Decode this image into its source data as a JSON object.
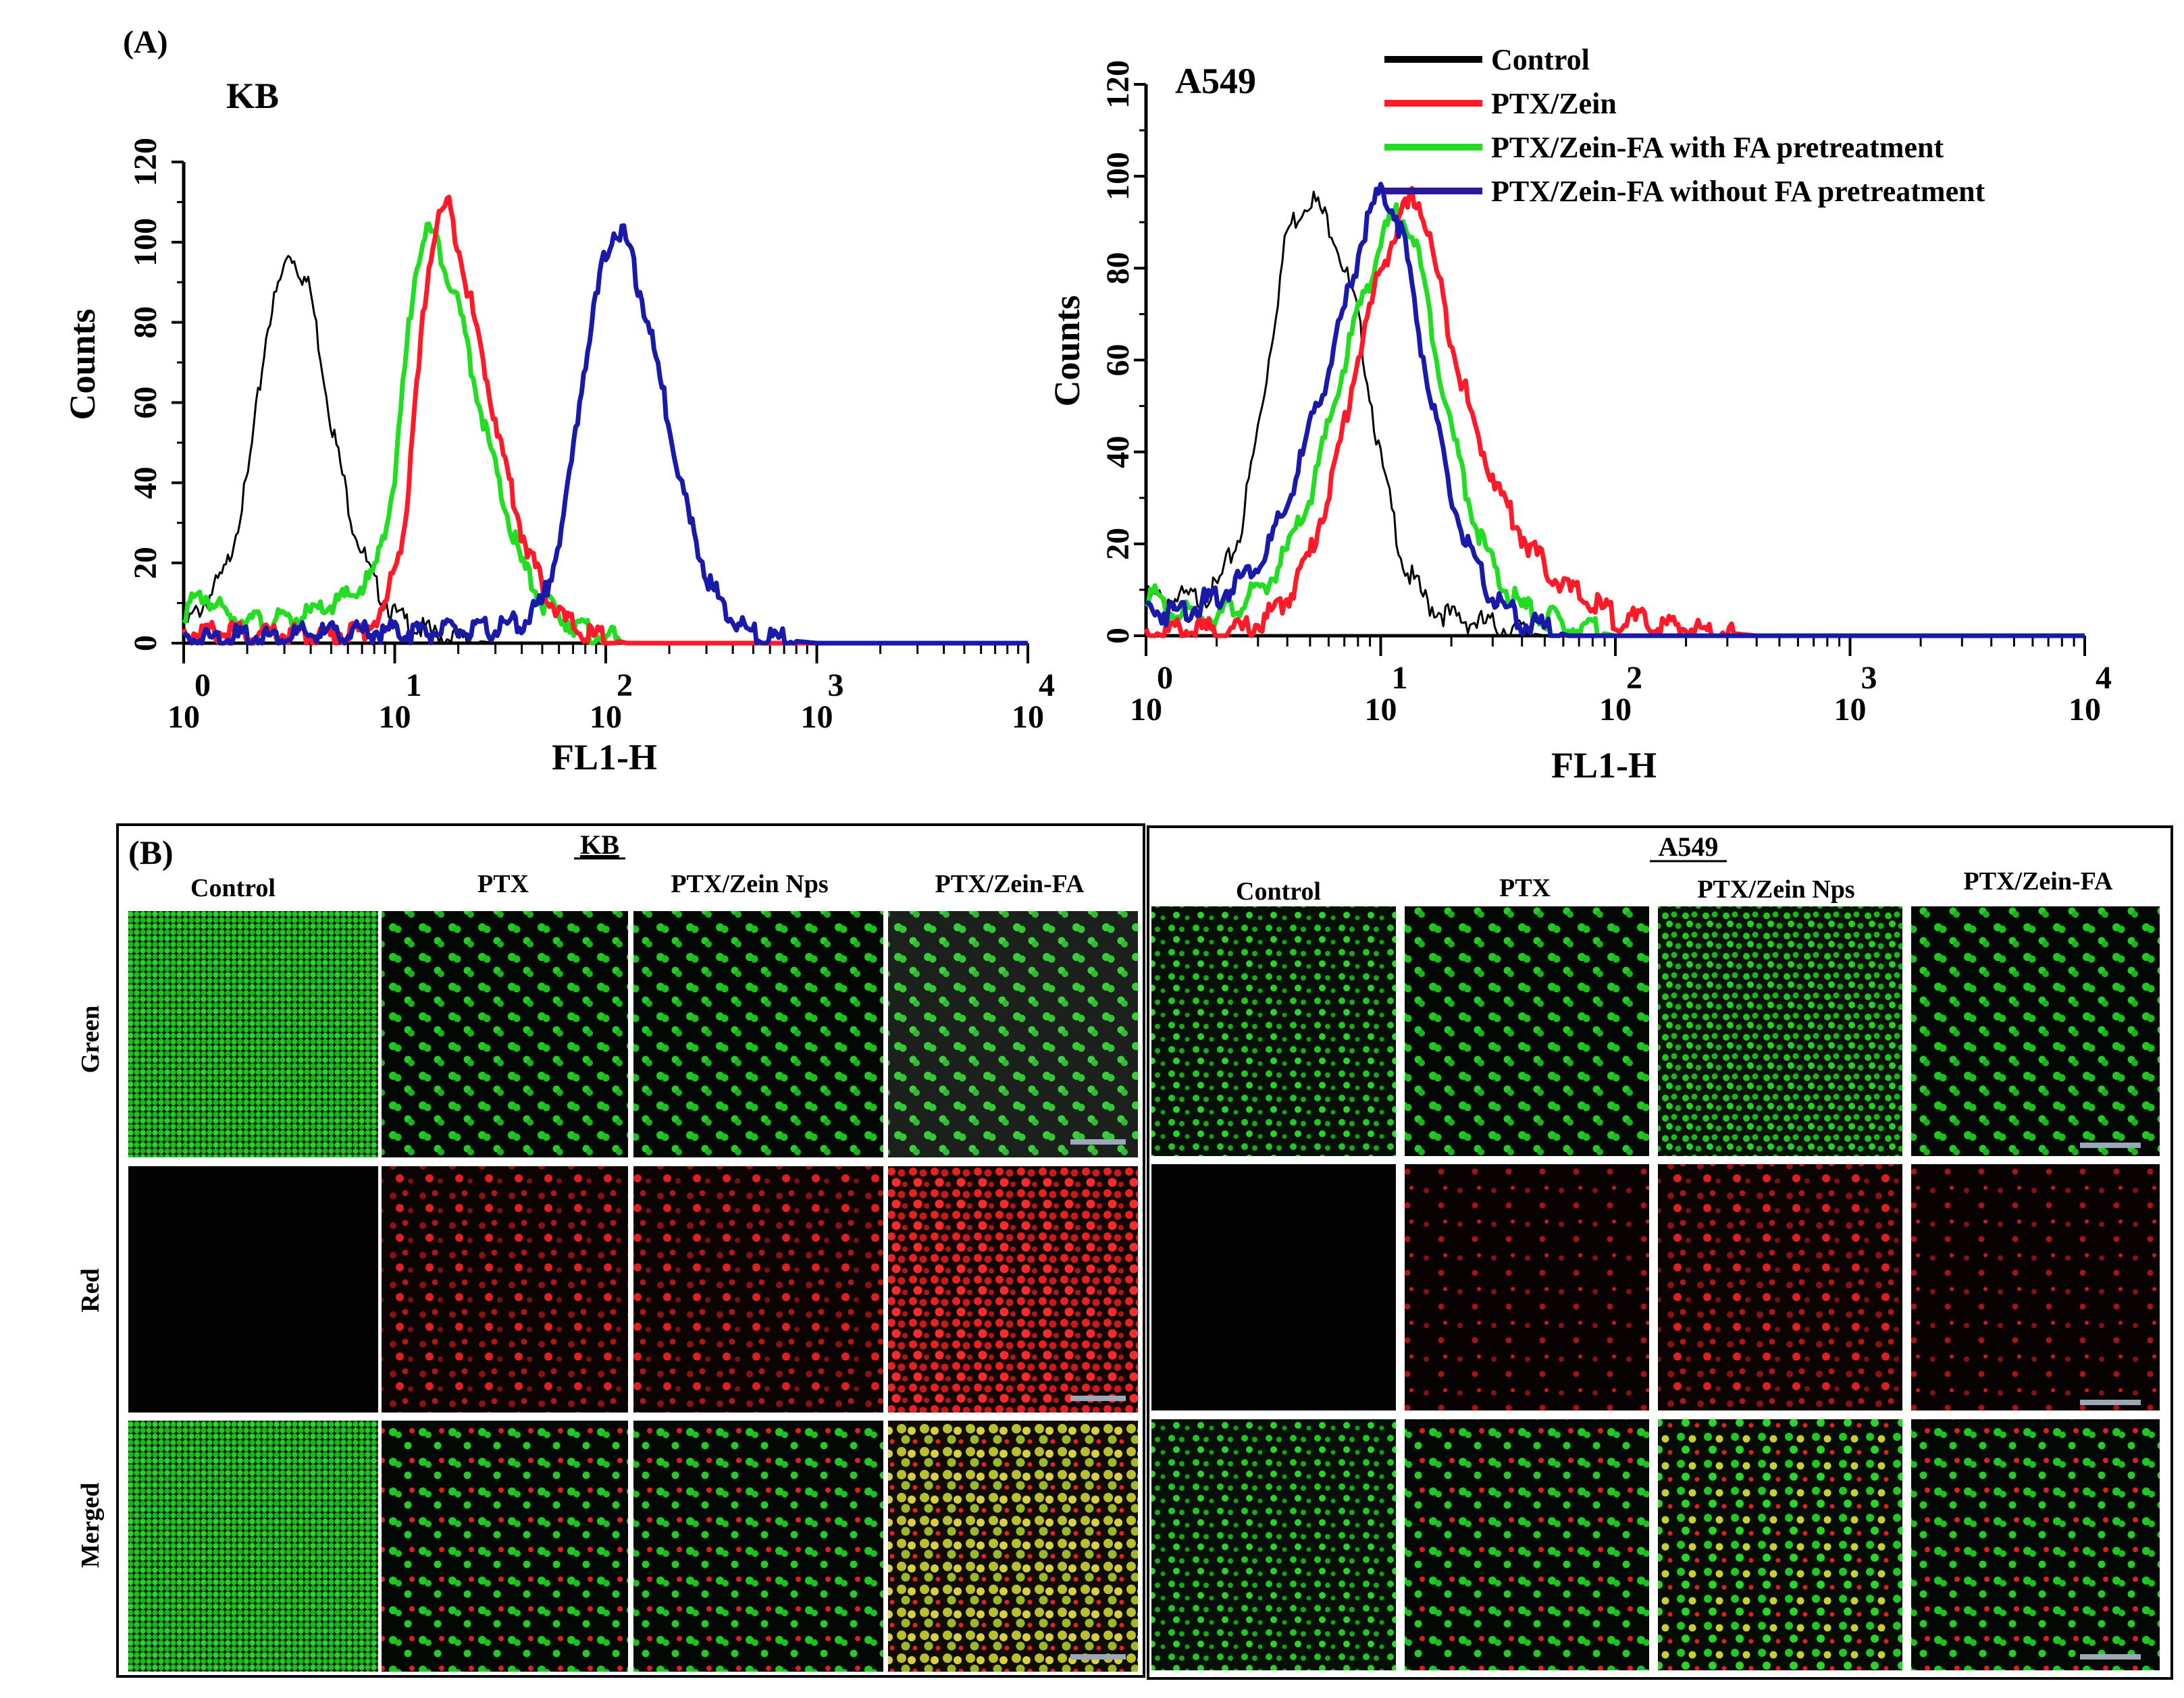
{
  "panel_a": {
    "label": "(A)",
    "legend": [
      {
        "label": "Control",
        "color": "#000000"
      },
      {
        "label": "PTX/Zein",
        "color": "#ff1a2a"
      },
      {
        "label": "PTX/Zein-FA with FA pretreatment",
        "color": "#22dd22"
      },
      {
        "label": "PTX/Zein-FA without FA pretreatment",
        "color": "#2a1a9a"
      }
    ]
  },
  "chart_data": [
    {
      "type": "line",
      "title": "KB",
      "xlabel": "FL1-H",
      "ylabel": "Counts",
      "x_scale": "log10",
      "xlim": [
        0,
        4
      ],
      "ylim": [
        0,
        120
      ],
      "x_ticks": [
        0,
        1,
        2,
        3,
        4
      ],
      "x_tick_labels": [
        {
          "base": "10",
          "exp": "0"
        },
        {
          "base": "10",
          "exp": "1"
        },
        {
          "base": "10",
          "exp": "2"
        },
        {
          "base": "10",
          "exp": "3"
        },
        {
          "base": "10",
          "exp": "4"
        }
      ],
      "y_ticks": [
        0,
        20,
        40,
        60,
        80,
        100,
        120
      ],
      "y_tick_labels": [
        "0",
        "20",
        "40",
        "60",
        "80",
        "100",
        "120"
      ],
      "series": [
        {
          "name": "Control",
          "color": "#000000",
          "stroke_width": "thin",
          "x": [
            0,
            0.1,
            0.2,
            0.3,
            0.4,
            0.5,
            0.6,
            0.7,
            0.8,
            0.9,
            1,
            1.1,
            1.2,
            1.3,
            1.5,
            1.8,
            2
          ],
          "y": [
            4,
            10,
            18,
            40,
            80,
            98,
            88,
            55,
            30,
            15,
            7,
            4,
            2,
            1,
            0,
            0,
            0
          ]
        },
        {
          "name": "PTX/Zein",
          "color": "#ff1a2a",
          "x": [
            0,
            0.4,
            0.7,
            0.85,
            0.95,
            1.05,
            1.1,
            1.15,
            1.2,
            1.25,
            1.3,
            1.4,
            1.5,
            1.6,
            1.7,
            1.8,
            1.9,
            2.1,
            4
          ],
          "y": [
            3,
            2,
            2,
            3,
            8,
            30,
            60,
            90,
            105,
            110,
            100,
            75,
            50,
            28,
            14,
            6,
            2,
            0,
            0
          ]
        },
        {
          "name": "PTX/Zein-FA with FA pretreatment",
          "color": "#22dd22",
          "x": [
            0,
            0.1,
            0.2,
            0.4,
            0.6,
            0.8,
            0.9,
            1,
            1.05,
            1.1,
            1.15,
            1.2,
            1.3,
            1.4,
            1.5,
            1.6,
            1.7,
            1.9,
            2.1,
            4
          ],
          "y": [
            8,
            12,
            7,
            5,
            7,
            12,
            17,
            40,
            70,
            95,
            103,
            100,
            85,
            60,
            38,
            20,
            10,
            3,
            0,
            0
          ]
        },
        {
          "name": "PTX/Zein-FA without FA pretreatment",
          "color": "#1a1aaa",
          "x": [
            0,
            0.5,
            1,
            1.4,
            1.6,
            1.7,
            1.8,
            1.9,
            2,
            2.05,
            2.1,
            2.2,
            2.3,
            2.4,
            2.5,
            2.6,
            2.7,
            2.8,
            3,
            4
          ],
          "y": [
            1,
            2,
            3,
            3,
            5,
            10,
            30,
            70,
            98,
            104,
            100,
            80,
            55,
            30,
            14,
            6,
            2,
            1,
            0,
            0
          ]
        }
      ]
    },
    {
      "type": "line",
      "title": "A549",
      "xlabel": "FL1-H",
      "ylabel": "Counts",
      "x_scale": "log10",
      "xlim": [
        0,
        4
      ],
      "ylim": [
        0,
        120
      ],
      "x_ticks": [
        0,
        1,
        2,
        3,
        4
      ],
      "x_tick_labels": [
        {
          "base": "10",
          "exp": "0"
        },
        {
          "base": "10",
          "exp": "1"
        },
        {
          "base": "10",
          "exp": "2"
        },
        {
          "base": "10",
          "exp": "3"
        },
        {
          "base": "10",
          "exp": "4"
        }
      ],
      "y_ticks": [
        0,
        20,
        40,
        60,
        80,
        100,
        120
      ],
      "y_tick_labels": [
        "0",
        "20",
        "40",
        "60",
        "80",
        "100",
        "120"
      ],
      "series": [
        {
          "name": "Control",
          "color": "#000000",
          "stroke_width": "thin",
          "x": [
            0,
            0.2,
            0.3,
            0.4,
            0.5,
            0.6,
            0.7,
            0.75,
            0.8,
            0.9,
            1,
            1.1,
            1.2,
            1.3,
            1.5,
            1.7,
            2
          ],
          "y": [
            8,
            8,
            10,
            22,
            52,
            88,
            96,
            92,
            88,
            70,
            38,
            15,
            7,
            4,
            2,
            0,
            0
          ]
        },
        {
          "name": "PTX/Zein",
          "color": "#ff1a2a",
          "x": [
            0,
            0.4,
            0.5,
            0.6,
            0.7,
            0.8,
            0.9,
            1,
            1.1,
            1.15,
            1.2,
            1.3,
            1.4,
            1.5,
            1.6,
            1.7,
            1.8,
            2,
            2.2,
            2.4,
            2.6,
            4
          ],
          "y": [
            1,
            1,
            3,
            8,
            18,
            35,
            60,
            80,
            92,
            96,
            88,
            65,
            45,
            32,
            22,
            15,
            10,
            4,
            2,
            1,
            0,
            0
          ]
        },
        {
          "name": "PTX/Zein-FA with FA pretreatment",
          "color": "#22dd22",
          "x": [
            0,
            0.1,
            0.3,
            0.5,
            0.6,
            0.7,
            0.8,
            0.9,
            1,
            1.05,
            1.1,
            1.15,
            1.2,
            1.3,
            1.4,
            1.5,
            1.6,
            1.8,
            2,
            4
          ],
          "y": [
            10,
            5,
            4,
            10,
            18,
            30,
            50,
            70,
            85,
            91,
            92,
            85,
            72,
            45,
            25,
            12,
            6,
            2,
            0,
            0
          ]
        },
        {
          "name": "PTX/Zein-FA without FA pretreatment",
          "color": "#1a1aaa",
          "x": [
            0,
            0.1,
            0.3,
            0.5,
            0.6,
            0.7,
            0.8,
            0.9,
            0.95,
            1,
            1.05,
            1.1,
            1.2,
            1.3,
            1.4,
            1.5,
            1.6,
            1.8,
            4
          ],
          "y": [
            6,
            5,
            8,
            17,
            28,
            45,
            62,
            82,
            92,
            96,
            94,
            86,
            55,
            30,
            15,
            7,
            3,
            0,
            0
          ]
        }
      ]
    }
  ],
  "panel_b": {
    "label": "(B)",
    "row_labels": [
      "Green",
      "Red",
      "Merged"
    ],
    "groups": [
      {
        "title": "KB",
        "columns": [
          "Control",
          "PTX",
          "PTX/Zein Nps",
          "PTX/Zein-FA"
        ]
      },
      {
        "title": "A549",
        "columns": [
          "Control",
          "PTX",
          "PTX/Zein Nps",
          "PTX/Zein-FA"
        ]
      }
    ],
    "scale_bar_color": "#9aa8b8",
    "channel_colors": {
      "green": "#22cc22",
      "red": "#e01818",
      "yellow": "#d8d030"
    }
  }
}
